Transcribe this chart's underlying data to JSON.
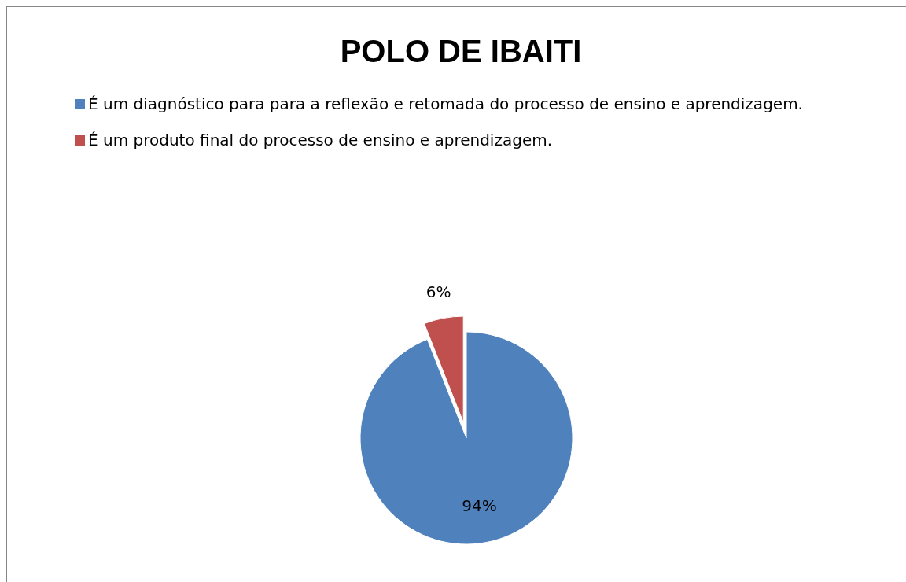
{
  "chart_data": {
    "type": "pie",
    "title": "POLO DE IBAITI",
    "categories": [
      "É um diagnóstico para para a reflexão e retomada do processo de ensino e aprendizagem.",
      "É um produto final do processo de ensino e aprendizagem."
    ],
    "values": [
      94,
      6
    ],
    "colors": [
      "#4f81bd",
      "#c0504d"
    ],
    "value_labels": [
      "94%",
      "6%"
    ],
    "legend": "top left"
  }
}
